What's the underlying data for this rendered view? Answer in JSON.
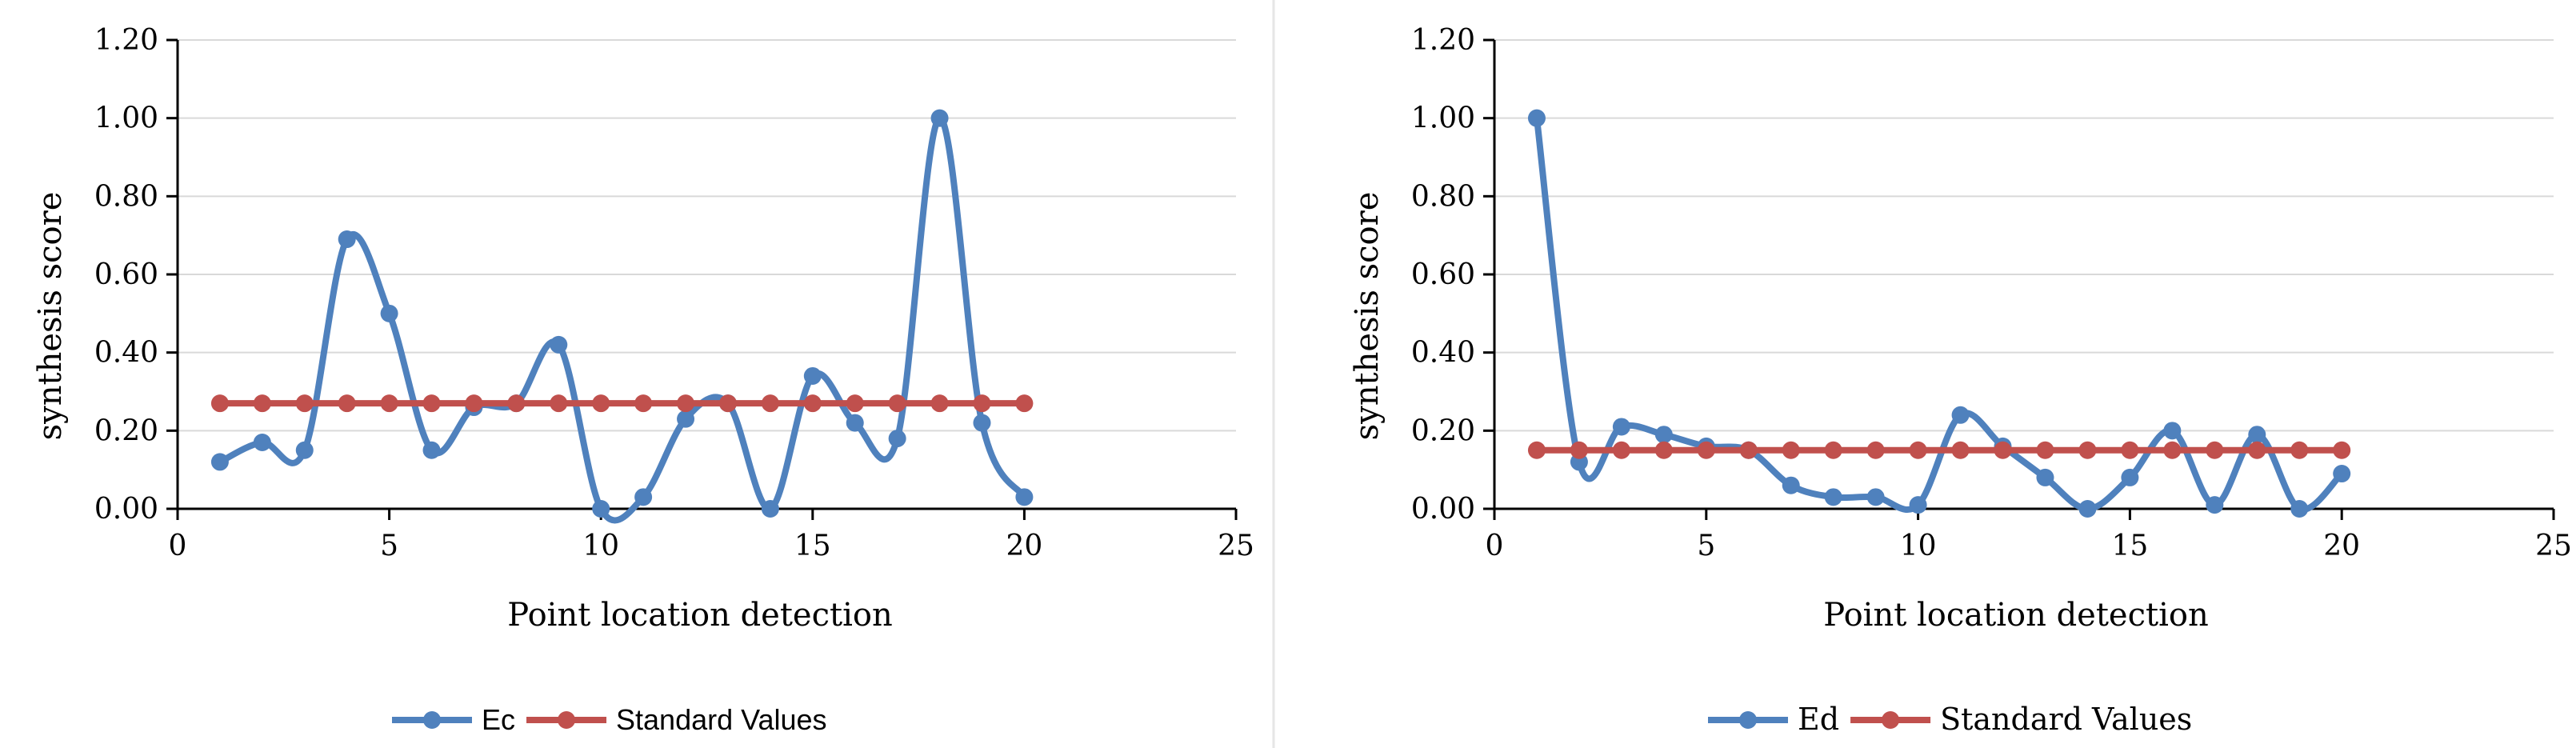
{
  "colors": {
    "primary_series": "#4f81bd",
    "standard_series": "#c0504d",
    "grid": "#d9d9d9",
    "divider": "#e0e0e0"
  },
  "chart_data": [
    {
      "type": "line",
      "smooth": true,
      "markers": "circle",
      "xlabel": "Point location detection",
      "ylabel": "synthesis score",
      "xlim": [
        0,
        25
      ],
      "ylim": [
        0,
        1.2
      ],
      "x_ticks": [
        "0",
        "5",
        "10",
        "15",
        "20",
        "25"
      ],
      "y_ticks": [
        "0.00",
        "0.20",
        "0.40",
        "0.60",
        "0.80",
        "1.00",
        "1.20"
      ],
      "grid": "horizontal",
      "legend_position": "bottom",
      "series": [
        {
          "name": "Ec",
          "x": [
            1,
            2,
            3,
            4,
            5,
            6,
            7,
            8,
            9,
            10,
            11,
            12,
            13,
            14,
            15,
            16,
            17,
            18,
            19,
            20
          ],
          "values": [
            0.12,
            0.17,
            0.15,
            0.69,
            0.5,
            0.15,
            0.26,
            0.27,
            0.42,
            0.0,
            0.03,
            0.23,
            0.27,
            0.0,
            0.34,
            0.22,
            0.18,
            1.0,
            0.22,
            0.03
          ]
        },
        {
          "name": "Standard Values",
          "x": [
            1,
            2,
            3,
            4,
            5,
            6,
            7,
            8,
            9,
            10,
            11,
            12,
            13,
            14,
            15,
            16,
            17,
            18,
            19,
            20
          ],
          "values": [
            0.27,
            0.27,
            0.27,
            0.27,
            0.27,
            0.27,
            0.27,
            0.27,
            0.27,
            0.27,
            0.27,
            0.27,
            0.27,
            0.27,
            0.27,
            0.27,
            0.27,
            0.27,
            0.27,
            0.27
          ]
        }
      ]
    },
    {
      "type": "line",
      "smooth": true,
      "markers": "circle",
      "xlabel": "Point location detection",
      "ylabel": "synthesis score",
      "xlim": [
        0,
        25
      ],
      "ylim": [
        0,
        1.2
      ],
      "x_ticks": [
        "0",
        "5",
        "10",
        "15",
        "20",
        "25"
      ],
      "y_ticks": [
        "0.00",
        "0.20",
        "0.40",
        "0.60",
        "0.80",
        "1.00",
        "1.20"
      ],
      "grid": "horizontal",
      "legend_position": "bottom",
      "series": [
        {
          "name": "Ed",
          "x": [
            1,
            2,
            3,
            4,
            5,
            6,
            7,
            8,
            9,
            10,
            11,
            12,
            13,
            14,
            15,
            16,
            17,
            18,
            19,
            20
          ],
          "values": [
            1.0,
            0.12,
            0.21,
            0.19,
            0.16,
            0.15,
            0.06,
            0.03,
            0.03,
            0.01,
            0.24,
            0.16,
            0.08,
            0.0,
            0.08,
            0.2,
            0.01,
            0.19,
            0.0,
            0.09
          ]
        },
        {
          "name": "Standard Values",
          "x": [
            1,
            2,
            3,
            4,
            5,
            6,
            7,
            8,
            9,
            10,
            11,
            12,
            13,
            14,
            15,
            16,
            17,
            18,
            19,
            20
          ],
          "values": [
            0.15,
            0.15,
            0.15,
            0.15,
            0.15,
            0.15,
            0.15,
            0.15,
            0.15,
            0.15,
            0.15,
            0.15,
            0.15,
            0.15,
            0.15,
            0.15,
            0.15,
            0.15,
            0.15,
            0.15
          ]
        }
      ]
    }
  ]
}
